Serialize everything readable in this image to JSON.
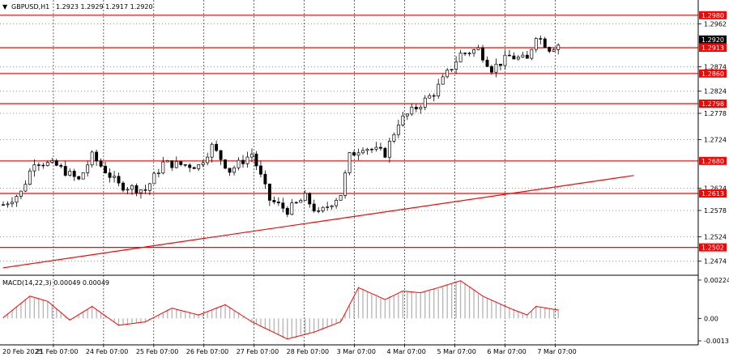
{
  "header": {
    "symbol_timeframe": "GBPUSD,H1",
    "ohlc_values": "1.2923 1.2929 1.2917 1.2920",
    "menu_arrow_glyph": "▼"
  },
  "macd_panel": {
    "label": "MACD(14,22,3) 0.00049 0.00049"
  },
  "colors": {
    "levels": "#ff0000",
    "signal": "#ff0000",
    "histogram": "#b4b4b4",
    "candle": "#000000",
    "price_tag": "#000000"
  },
  "chart_data": [
    {
      "type": "candlestick",
      "symbol": "GBPUSD",
      "timeframe": "H1",
      "ylim": [
        1.2448,
        1.3008
      ],
      "yticks": [
        "1.2980",
        "1.2962",
        "1.2913",
        "1.2874",
        "1.2860",
        "1.2824",
        "1.2798",
        "1.2778",
        "1.2724",
        "1.2680",
        "1.2624",
        "1.2613",
        "1.2578",
        "1.2524",
        "1.2502",
        "1.2474"
      ],
      "xticks": [
        "20 Feb 2025",
        "21 Feb 07:00",
        "24 Feb 07:00",
        "25 Feb 07:00",
        "26 Feb 07:00",
        "27 Feb 07:00",
        "28 Feb 07:00",
        "3 Mar 07:00",
        "4 Mar 07:00",
        "5 Mar 07:00",
        "6 Mar 07:00",
        "7 Mar 07:00"
      ],
      "levels": [
        1.298,
        1.2913,
        1.286,
        1.2798,
        1.268,
        1.2613,
        1.2502
      ],
      "last_price": "1.2920",
      "trendline": {
        "start": [
          0,
          1.246
        ],
        "end": [
          142,
          1.265
        ]
      },
      "close_path": [
        [
          0,
          1.259
        ],
        [
          4,
          1.2615
        ],
        [
          7,
          1.268
        ],
        [
          12,
          1.267
        ],
        [
          17,
          1.264
        ],
        [
          20,
          1.269
        ],
        [
          26,
          1.263
        ],
        [
          32,
          1.262
        ],
        [
          36,
          1.2675
        ],
        [
          44,
          1.267
        ],
        [
          47,
          1.271
        ],
        [
          51,
          1.266
        ],
        [
          56,
          1.2695
        ],
        [
          60,
          1.26
        ],
        [
          64,
          1.2578
        ],
        [
          68,
          1.2605
        ],
        [
          71,
          1.257
        ],
        [
          76,
          1.2612
        ],
        [
          78,
          1.269
        ],
        [
          81,
          1.271
        ],
        [
          86,
          1.2695
        ],
        [
          89,
          1.276
        ],
        [
          93,
          1.279
        ],
        [
          97,
          1.282
        ],
        [
          100,
          1.286
        ],
        [
          103,
          1.29
        ],
        [
          107,
          1.291
        ],
        [
          110,
          1.287
        ],
        [
          114,
          1.2895
        ],
        [
          118,
          1.2888
        ],
        [
          120,
          1.294
        ],
        [
          123,
          1.2912
        ],
        [
          125,
          1.292
        ]
      ],
      "candle_count": 126
    },
    {
      "type": "macd",
      "params": [
        14,
        22,
        3
      ],
      "ylim": [
        -0.00145,
        0.00238
      ],
      "yticks": [
        "0.00224",
        "0.00",
        "-0.00131"
      ],
      "signal_path": [
        [
          0,
          5e-05
        ],
        [
          6,
          0.0013
        ],
        [
          10,
          0.001
        ],
        [
          15,
          -0.0001
        ],
        [
          20,
          0.0007
        ],
        [
          26,
          -0.0004
        ],
        [
          32,
          -0.0002
        ],
        [
          38,
          0.0006
        ],
        [
          44,
          0.0002
        ],
        [
          50,
          0.0008
        ],
        [
          56,
          -0.0002
        ],
        [
          64,
          -0.0012
        ],
        [
          70,
          -0.0008
        ],
        [
          76,
          -0.0002
        ],
        [
          80,
          0.0018
        ],
        [
          86,
          0.0011
        ],
        [
          90,
          0.0016
        ],
        [
          94,
          0.0015
        ],
        [
          98,
          0.0018
        ],
        [
          103,
          0.0022
        ],
        [
          108,
          0.0013
        ],
        [
          114,
          0.0006
        ],
        [
          118,
          0.0002
        ],
        [
          120,
          0.0007
        ],
        [
          125,
          0.00049
        ]
      ]
    }
  ]
}
